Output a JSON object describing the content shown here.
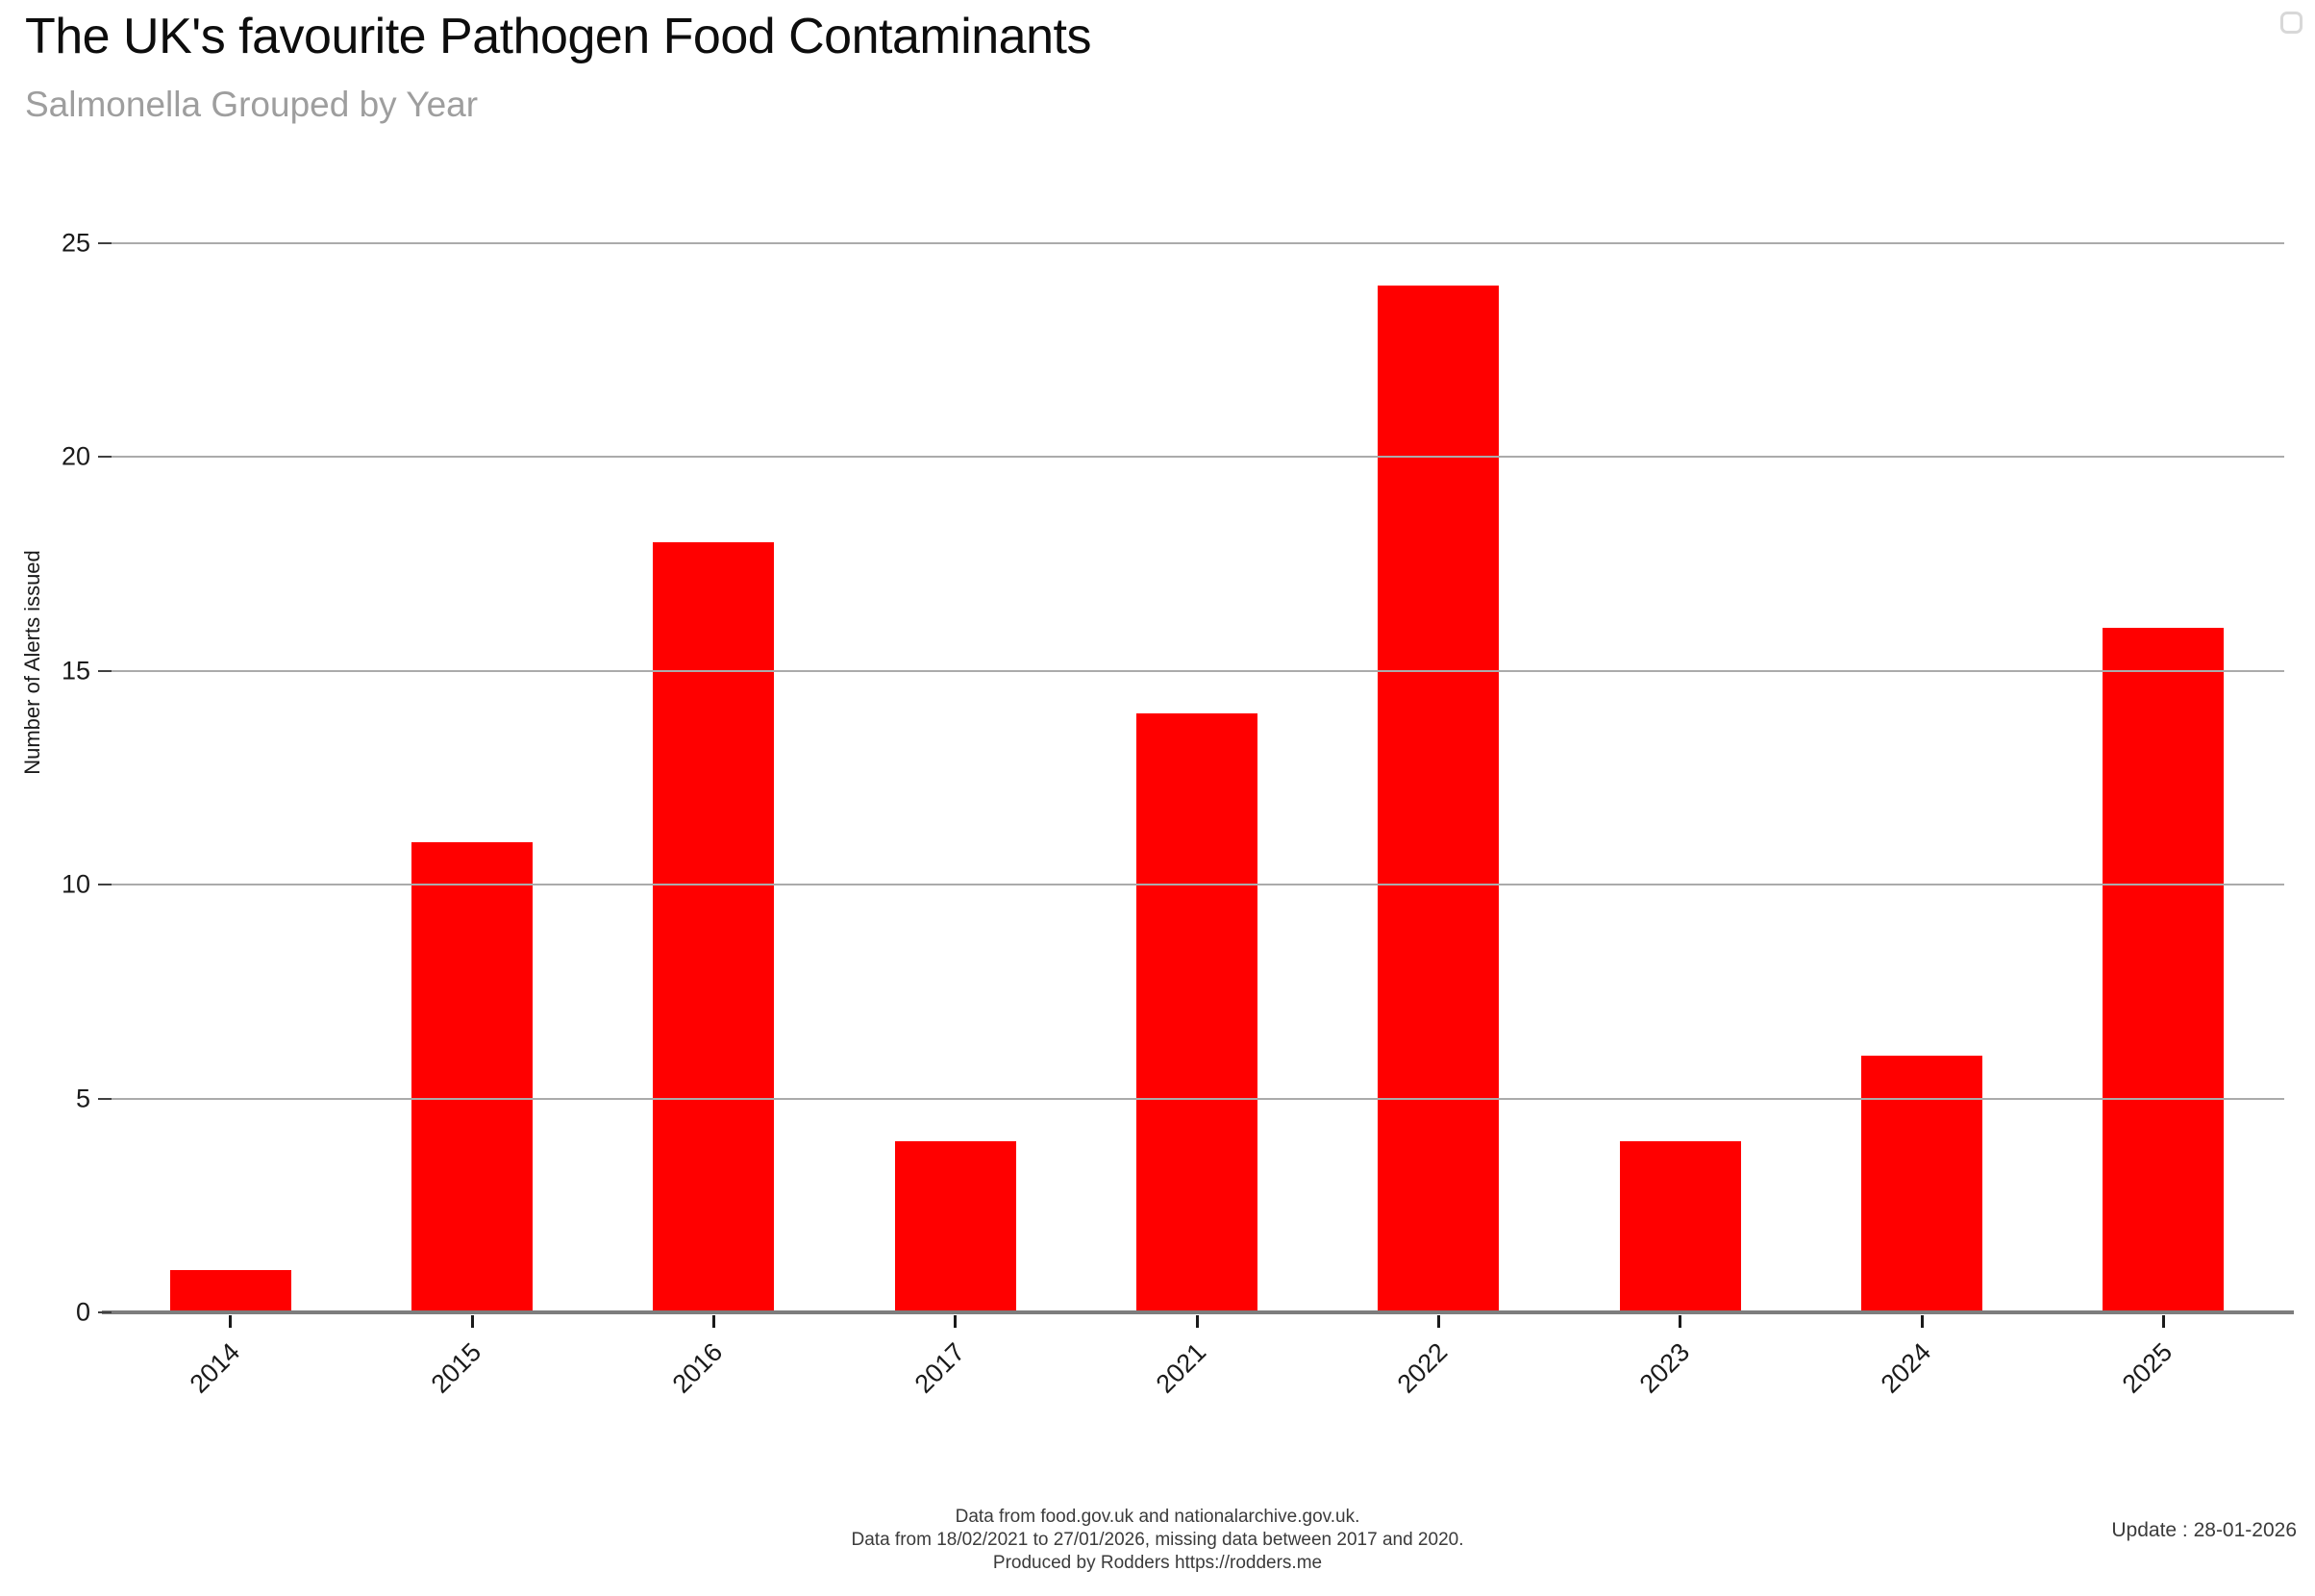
{
  "header": {
    "title": "The UK's favourite Pathogen Food Contaminants",
    "subtitle": "Salmonella Grouped by Year"
  },
  "icons": {
    "top_right_button": "rounded-square-outline"
  },
  "chart_data": {
    "type": "bar",
    "title": "The UK's favourite Pathogen Food Contaminants",
    "subtitle": "Salmonella Grouped by Year",
    "categories": [
      "2014",
      "2015",
      "2016",
      "2017",
      "2021",
      "2022",
      "2023",
      "2024",
      "2025"
    ],
    "values": [
      1,
      11,
      18,
      4,
      14,
      24,
      4,
      6,
      16
    ],
    "xlabel": "",
    "ylabel": "Number of Alerts issued",
    "ylim": [
      0,
      25
    ],
    "yticks": [
      0,
      5,
      10,
      15,
      20,
      25
    ],
    "bar_color": "#ff0000",
    "grid": true,
    "gridline_color": "#ababab",
    "axis_color": "#7d7d7d",
    "legend_position": "none"
  },
  "footer": {
    "line1": "Data from food.gov.uk and nationalarchive.gov.uk.",
    "line2": "Data from 18/02/2021 to 27/01/2026, missing data between 2017 and 2020.",
    "line3": "Produced by Rodders https://rodders.me",
    "update": "Update : 28-01-2026"
  }
}
